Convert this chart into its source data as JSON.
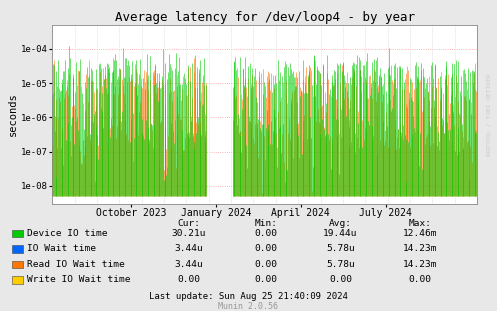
{
  "title": "Average latency for /dev/loop4 - by year",
  "ylabel": "seconds",
  "bg_color": "#e8e8e8",
  "plot_bg_color": "#ffffff",
  "grid_color": "#cccccc",
  "border_color": "#aaaaaa",
  "yticks": [
    1e-08,
    1e-07,
    1e-06,
    1e-05,
    0.0001
  ],
  "ytick_labels": [
    "1e-08",
    "1e-07",
    "1e-06",
    "1e-05",
    "1e-04"
  ],
  "series_colors": {
    "device": "#00cc00",
    "io_wait": "#0000ff",
    "read_io": "#ff7700",
    "write_io": "#ffcc00"
  },
  "legend_entries": [
    {
      "label": "Device IO time",
      "color": "#00cc00"
    },
    {
      "label": "IO Wait time",
      "color": "#0066ff"
    },
    {
      "label": "Read IO Wait time",
      "color": "#ff7700"
    },
    {
      "label": "Write IO Wait time",
      "color": "#ffcc00"
    }
  ],
  "legend_data": {
    "headers": [
      "Cur:",
      "Min:",
      "Avg:",
      "Max:"
    ],
    "rows": [
      [
        "30.21u",
        "0.00",
        "19.44u",
        "12.46m"
      ],
      [
        "3.44u",
        "0.00",
        "5.78u",
        "14.23m"
      ],
      [
        "3.44u",
        "0.00",
        "5.78u",
        "14.23m"
      ],
      [
        "0.00",
        "0.00",
        "0.00",
        "0.00"
      ]
    ]
  },
  "last_update": "Last update: Sun Aug 25 21:40:09 2024",
  "munin_version": "Munin 2.0.56",
  "watermark": "RRDTOOL / TOBI OETIKER",
  "x_tick_labels": [
    "October 2023",
    "January 2024",
    "April 2024",
    "July 2024"
  ],
  "x_tick_positions": [
    0.185,
    0.385,
    0.585,
    0.785
  ]
}
